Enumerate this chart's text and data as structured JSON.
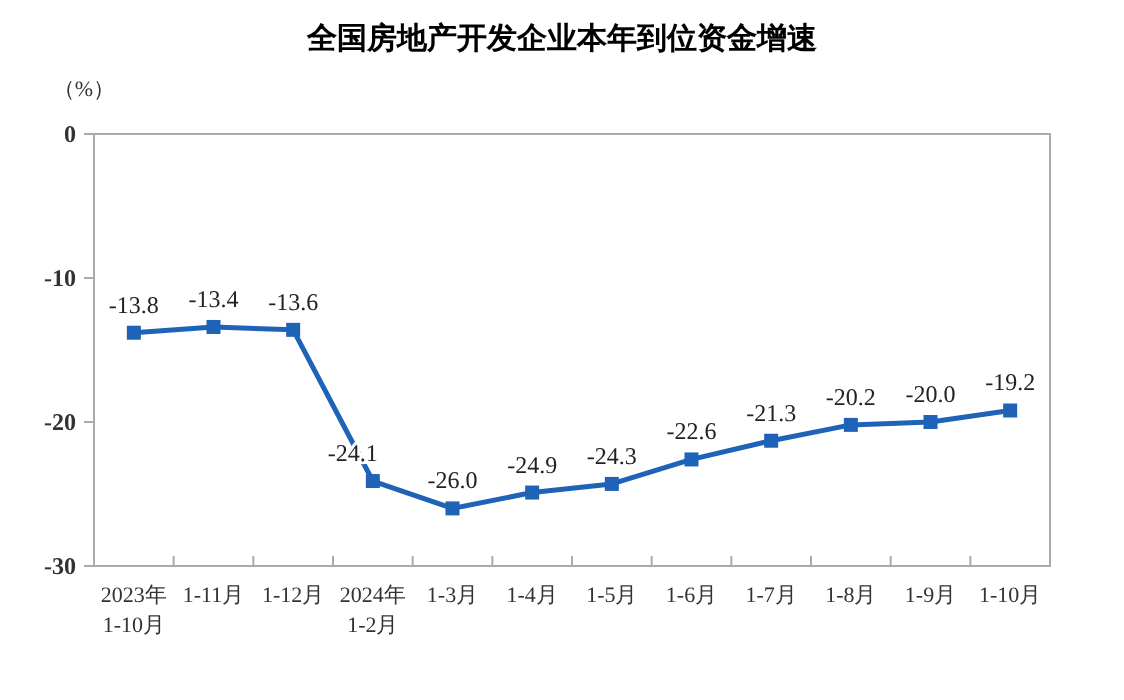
{
  "chart_data": {
    "type": "line",
    "title": "全国房地产开发企业本年到位资金增速",
    "ylabel": "（%）",
    "categories": [
      "2023年\n1-10月",
      "1-11月",
      "1-12月",
      "2024年\n1-2月",
      "1-3月",
      "1-4月",
      "1-5月",
      "1-6月",
      "1-7月",
      "1-8月",
      "1-9月",
      "1-10月"
    ],
    "series": [
      {
        "color": "#1f63b8",
        "values": [
          -13.8,
          -13.4,
          -13.6,
          -24.1,
          -26.0,
          -24.9,
          -24.3,
          -22.6,
          -21.3,
          -20.2,
          -20.0,
          -19.2
        ]
      }
    ],
    "value_labels": [
      "-13.8",
      "-13.4",
      "-13.6",
      "-24.1",
      "-26.0",
      "-24.9",
      "-24.3",
      "-22.6",
      "-21.3",
      "-20.2",
      "-20.0",
      "-19.2"
    ],
    "ylim": [
      -30,
      0
    ],
    "yticks": [
      -30,
      -20,
      -10,
      0
    ],
    "grid": false,
    "marker": "square",
    "line_style": "solid"
  }
}
